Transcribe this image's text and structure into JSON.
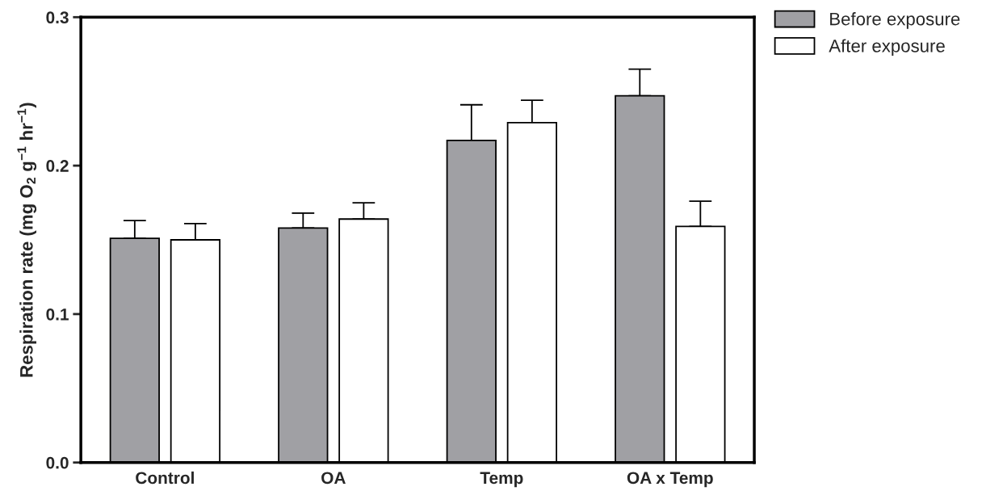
{
  "chart_data": {
    "type": "bar",
    "categories": [
      "Control",
      "OA",
      "Temp",
      "OA x Temp"
    ],
    "ylabel": "Respiration rate (mg O$_{2}$ g$^{−1}$ hr$^{−1}$)",
    "series": [
      {
        "name": "Before exposure",
        "color": "#a0a0a4",
        "values": [
          0.151,
          0.158,
          0.217,
          0.247
        ],
        "errors": [
          [
            0.151,
            0.163
          ],
          [
            0.158,
            0.168
          ],
          [
            0.217,
            0.241
          ],
          [
            0.247,
            0.265
          ]
        ]
      },
      {
        "name": "After exposure",
        "color": "#ffffff",
        "values": [
          0.15,
          0.164,
          0.229,
          0.159
        ],
        "errors": [
          [
            0.15,
            0.161
          ],
          [
            0.164,
            0.175
          ],
          [
            0.229,
            0.244
          ],
          [
            0.159,
            0.176
          ]
        ]
      }
    ],
    "ylim": [
      0,
      0.3
    ],
    "yticks": [
      {
        "value": 0,
        "label": "0.0"
      },
      0.1,
      0.2,
      0.3
    ],
    "grid": false,
    "legend": "top right"
  }
}
